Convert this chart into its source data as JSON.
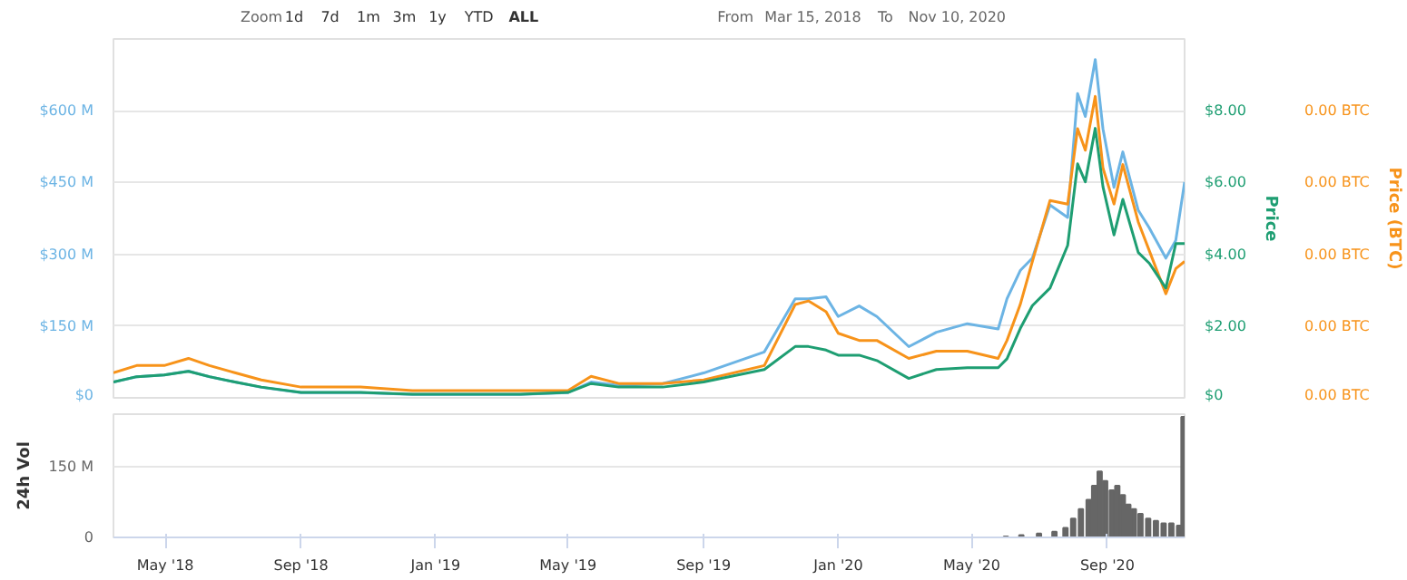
{
  "chart_data": [
    {
      "type": "line",
      "annotations": [
        "Zoom",
        "1d",
        "7d",
        "1m",
        "3m",
        "1y",
        "YTD",
        "ALL",
        "From",
        "Mar 15, 2018",
        "To",
        "Nov 10, 2020"
      ],
      "y2label": "Price",
      "y3label": "Price (BTC)",
      "x": [
        "2018-03-15",
        "2018-04-05",
        "2018-04-30",
        "2018-05-22",
        "2018-06-10",
        "2018-07-03",
        "2018-07-27",
        "2018-09-01",
        "2018-10-25",
        "2018-12-11",
        "2019-01-28",
        "2019-03-19",
        "2019-05-01",
        "2019-05-22",
        "2019-06-16",
        "2019-07-26",
        "2019-09-01",
        "2019-10-26",
        "2019-11-23",
        "2019-12-05",
        "2019-12-21",
        "2020-01-01",
        "2020-01-20",
        "2020-02-05",
        "2020-03-05",
        "2020-03-30",
        "2020-04-27",
        "2020-05-25",
        "2020-06-02",
        "2020-06-14",
        "2020-06-25",
        "2020-07-11",
        "2020-07-27",
        "2020-08-05",
        "2020-08-12",
        "2020-08-21",
        "2020-08-28",
        "2020-09-07",
        "2020-09-15",
        "2020-09-29",
        "2020-10-09",
        "2020-10-24",
        "2020-11-02",
        "2020-11-10"
      ],
      "series": [
        {
          "color": "#6cb4e4",
          "axis": "y",
          "values": [
            33,
            44,
            48,
            56,
            44,
            33,
            22,
            11,
            11,
            7,
            7,
            7,
            11,
            33,
            26,
            30,
            52,
            96,
            207,
            207,
            211,
            170,
            192,
            170,
            107,
            137,
            155,
            144,
            207,
            266,
            292,
            403,
            377,
            636,
            588,
            707,
            562,
            440,
            514,
            392,
            355,
            292,
            329,
            451
          ]
        },
        {
          "color": "#f7931a",
          "axis": "y3",
          "values": [
            7e-05,
            9e-05,
            9e-05,
            0.00011,
            9e-05,
            7e-05,
            5e-05,
            3e-05,
            3e-05,
            2e-05,
            2e-05,
            2e-05,
            2e-05,
            6e-05,
            4e-05,
            4e-05,
            5e-05,
            9e-05,
            0.00026,
            0.00027,
            0.00024,
            0.00018,
            0.00016,
            0.00016,
            0.00011,
            0.00013,
            0.00013,
            0.00011,
            0.00016,
            0.00026,
            0.00038,
            0.00055,
            0.00054,
            0.00075,
            0.00069,
            0.00084,
            0.00064,
            0.00054,
            0.00065,
            0.00049,
            0.00041,
            0.00029,
            0.00036,
            0.00038
          ]
        },
        {
          "color": "#1e9e72",
          "axis": "y2",
          "values": [
            0.44,
            0.59,
            0.64,
            0.74,
            0.59,
            0.44,
            0.3,
            0.15,
            0.15,
            0.1,
            0.1,
            0.1,
            0.15,
            0.4,
            0.3,
            0.3,
            0.44,
            0.79,
            1.43,
            1.43,
            1.33,
            1.19,
            1.19,
            1.04,
            0.54,
            0.79,
            0.84,
            0.84,
            1.09,
            1.93,
            2.57,
            3.06,
            4.25,
            6.52,
            6.02,
            7.51,
            5.88,
            4.54,
            5.53,
            4.05,
            3.75,
            3.06,
            4.3,
            4.3
          ]
        }
      ],
      "xlim": [
        "2018-03-15",
        "2020-11-10"
      ],
      "ylim": [
        0,
        750
      ],
      "yticks": [
        {
          "value": 0,
          "label": "$0"
        },
        {
          "value": 150,
          "label": "$150 M"
        },
        {
          "value": 300,
          "label": "$300 M"
        },
        {
          "value": 450,
          "label": "$450 M"
        },
        {
          "value": 600,
          "label": "$600 M"
        }
      ],
      "y2lim": [
        0,
        10
      ],
      "y2ticks": [
        {
          "value": 0,
          "label": "$0"
        },
        {
          "value": 2,
          "label": "$2.00"
        },
        {
          "value": 4,
          "label": "$4.00"
        },
        {
          "value": 6,
          "label": "$6.00"
        },
        {
          "value": 8,
          "label": "$8.00"
        }
      ],
      "y3lim": [
        0,
        0.001
      ],
      "y3ticks": [
        {
          "value": 0,
          "label": "0.00 BTC"
        },
        {
          "value": 0.0002,
          "label": "0.00 BTC"
        },
        {
          "value": 0.0004,
          "label": "0.00 BTC"
        },
        {
          "value": 0.0006,
          "label": "0.00 BTC"
        },
        {
          "value": 0.0008,
          "label": "0.00 BTC"
        }
      ],
      "grid": "y",
      "tick_labels": "y"
    },
    {
      "type": "bar",
      "ylabel": "24h Vol",
      "x": [
        "2020-06-01",
        "2020-06-15",
        "2020-07-01",
        "2020-07-15",
        "2020-07-25",
        "2020-08-01",
        "2020-08-08",
        "2020-08-15",
        "2020-08-20",
        "2020-08-25",
        "2020-08-30",
        "2020-09-05",
        "2020-09-10",
        "2020-09-15",
        "2020-09-20",
        "2020-09-25",
        "2020-10-01",
        "2020-10-08",
        "2020-10-15",
        "2020-10-22",
        "2020-10-29",
        "2020-11-05",
        "2020-11-09"
      ],
      "values": [
        2,
        5,
        8,
        12,
        20,
        40,
        60,
        80,
        110,
        140,
        120,
        100,
        110,
        90,
        70,
        60,
        50,
        40,
        35,
        30,
        30,
        25,
        256
      ],
      "color": "#666666",
      "xlim": [
        "2018-03-15",
        "2020-11-10"
      ],
      "xticks": [
        {
          "value": "2018-05-01",
          "label": "May '18"
        },
        {
          "value": "2018-09-01",
          "label": "Sep '18"
        },
        {
          "value": "2019-01-01",
          "label": "Jan '19"
        },
        {
          "value": "2019-05-01",
          "label": "May '19"
        },
        {
          "value": "2019-09-01",
          "label": "Sep '19"
        },
        {
          "value": "2020-01-01",
          "label": "Jan '20"
        },
        {
          "value": "2020-05-01",
          "label": "May '20"
        },
        {
          "value": "2020-09-01",
          "label": "Sep '20"
        }
      ],
      "ylim": [
        0,
        262
      ],
      "yticks": [
        0,
        {
          "value": 150,
          "label": "150 M"
        }
      ],
      "grid": "y"
    }
  ]
}
